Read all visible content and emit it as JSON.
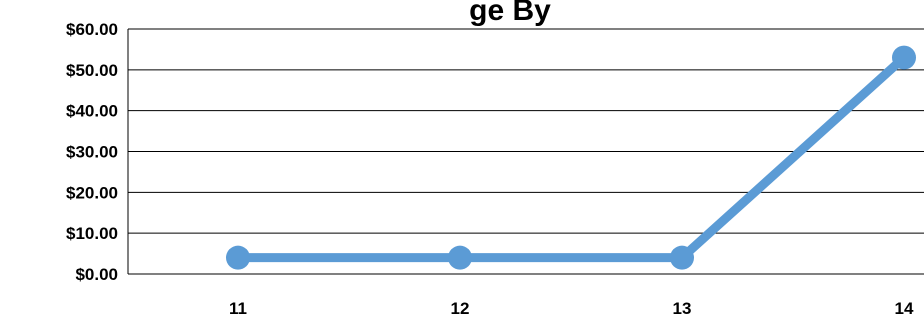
{
  "chart_data": {
    "type": "line",
    "title": "ge By",
    "categories": [
      "11",
      "12",
      "13",
      "14"
    ],
    "series": [
      {
        "values": [
          4,
          4,
          4,
          53
        ],
        "color": "#5b9bd5"
      }
    ],
    "y_ticks": [
      "$0.00",
      "$10.00",
      "$20.00",
      "$30.00",
      "$40.00",
      "$50.00",
      "$60.00"
    ],
    "ylim": [
      0,
      60
    ],
    "grid": true,
    "legend": "none"
  }
}
